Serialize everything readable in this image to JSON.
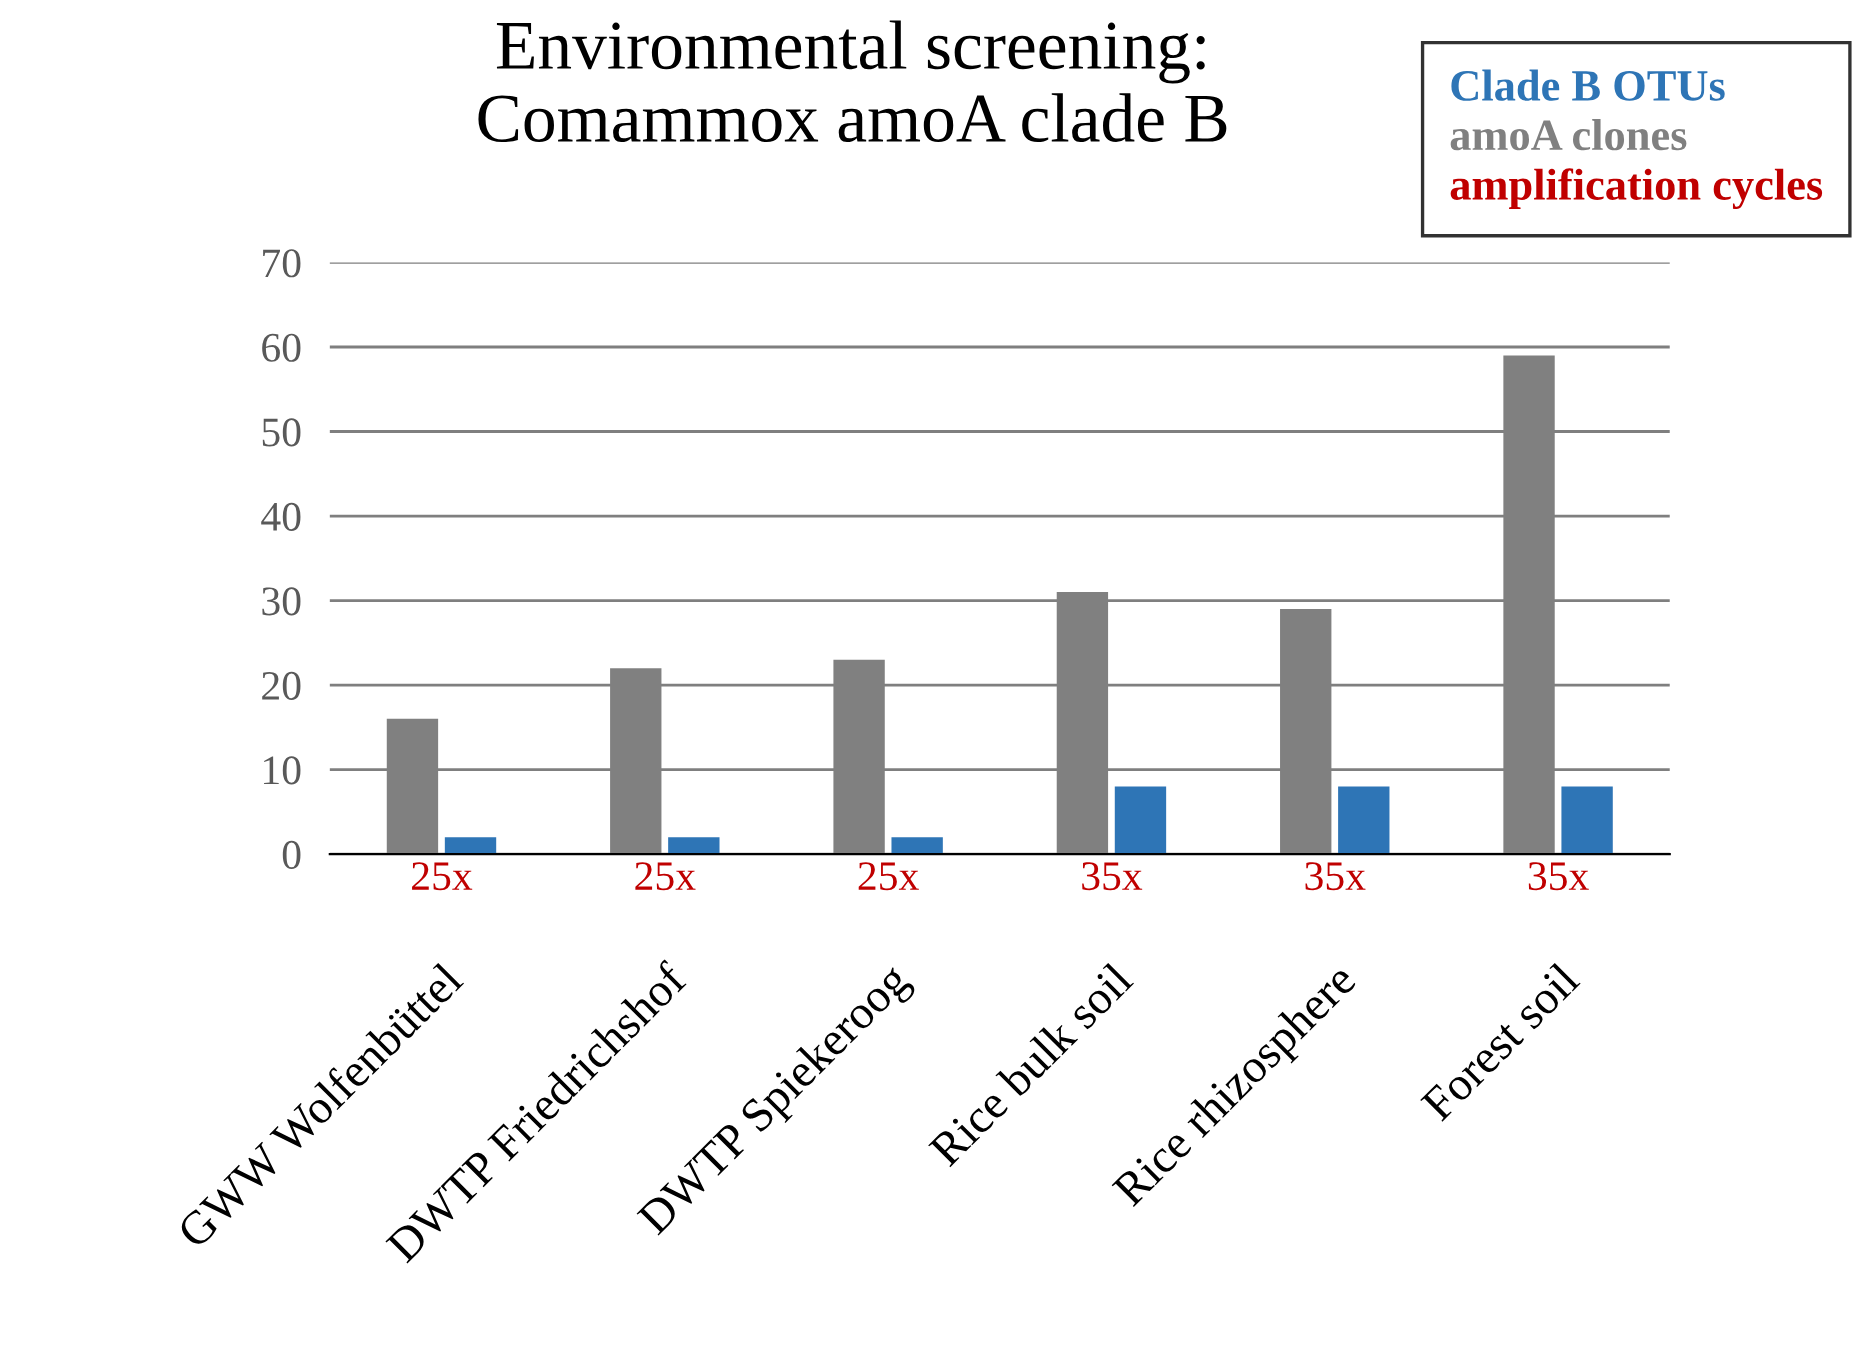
{
  "chart_data": {
    "type": "bar",
    "title": "Environmental screening:\nComammox amoA clade B",
    "categories": [
      "GWW Wolfenbüttel",
      "DWTP Friedrichshof",
      "DWTP Spiekeroog",
      "Rice bulk soil",
      "Rice rhizosphere",
      "Forest soil"
    ],
    "series": [
      {
        "name": "amoA clones",
        "color": "#808080",
        "values": [
          16,
          22,
          23,
          31,
          29,
          59
        ]
      },
      {
        "name": "Clade B OTUs",
        "color": "#2e75b6",
        "values": [
          2,
          2,
          2,
          8,
          8,
          8
        ]
      }
    ],
    "annotations": [
      "amplification cycles",
      "25x",
      "25x",
      "25x",
      "35x",
      "35x",
      "35x"
    ],
    "ylim": [
      0,
      70
    ],
    "yticks": [
      0,
      10,
      20,
      30,
      40,
      50,
      60,
      70
    ],
    "grid": "y",
    "legend": "top right"
  }
}
